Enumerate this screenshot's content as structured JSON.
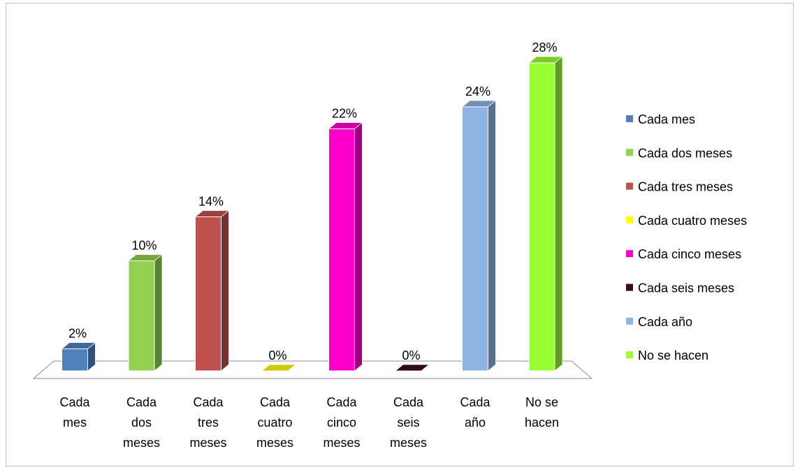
{
  "chart_data": {
    "type": "bar",
    "title": "",
    "xlabel": "",
    "ylabel": "",
    "ylim": [
      0,
      28
    ],
    "grid": false,
    "legend_position": "right",
    "categories": [
      [
        "Cada",
        "mes"
      ],
      [
        "Cada",
        "dos",
        "meses"
      ],
      [
        "Cada",
        "tres",
        "meses"
      ],
      [
        "Cada",
        "cuatro",
        "meses"
      ],
      [
        "Cada",
        "cinco",
        "meses"
      ],
      [
        "Cada",
        "seis",
        "meses"
      ],
      [
        "Cada",
        "año"
      ],
      [
        "No se",
        "hacen"
      ]
    ],
    "values": [
      2,
      10,
      14,
      0,
      22,
      0,
      24,
      28
    ],
    "data_labels": [
      "2%",
      "10%",
      "14%",
      "0%",
      "22%",
      "0%",
      "24%",
      "28%"
    ],
    "legend": [
      "Cada mes",
      "Cada dos meses",
      "Cada tres meses",
      "Cada cuatro meses",
      "Cada cinco meses",
      "Cada seis meses",
      "Cada año",
      "No se hacen"
    ],
    "colors": [
      "#4f81bd",
      "#92d050",
      "#c0504d",
      "#ffff00",
      "#ff00cc",
      "#3b0d12",
      "#8db4e2",
      "#99ff33"
    ]
  }
}
